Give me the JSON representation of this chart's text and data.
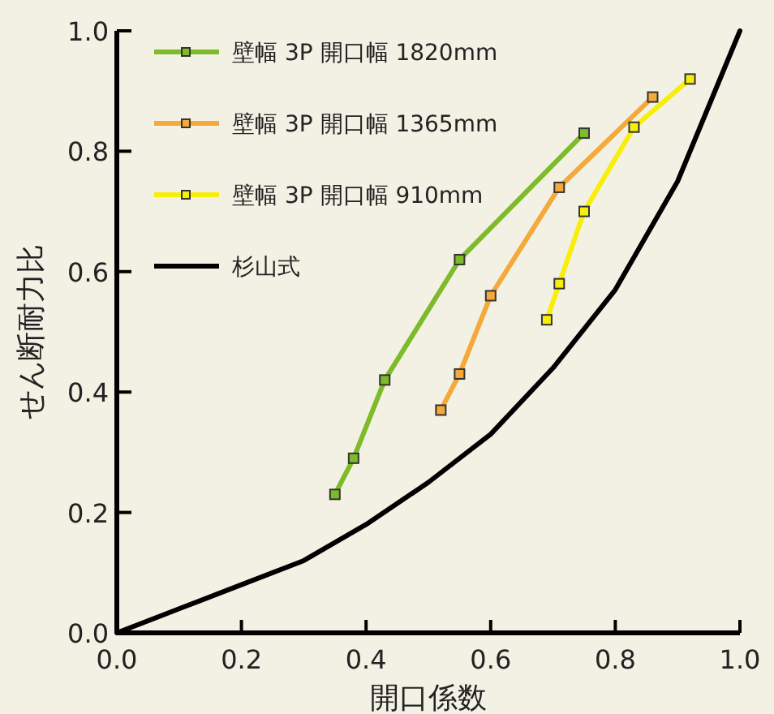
{
  "chart_data": {
    "type": "line",
    "xlabel": "開口係数",
    "ylabel": "せん断耐力比",
    "xlim": [
      0,
      1
    ],
    "ylim": [
      0,
      1
    ],
    "xticks": [
      {
        "value": 0,
        "label": "0.0"
      },
      0.2,
      0.4,
      0.6,
      0.8,
      {
        "value": 1,
        "label": "1.0"
      }
    ],
    "yticks": [
      {
        "value": 0,
        "label": "0.0"
      },
      0.2,
      0.4,
      0.6,
      0.8,
      {
        "value": 1,
        "label": "1.0"
      }
    ],
    "grid": false,
    "legend": "top left",
    "series": [
      {
        "name": "壁幅 3P 開口幅 1820mm",
        "color": "#7dbb2a",
        "marker": "square",
        "x": [
          0.35,
          0.38,
          0.43,
          0.55,
          0.75
        ],
        "values": [
          0.23,
          0.29,
          0.42,
          0.62,
          0.83
        ]
      },
      {
        "name": "壁幅 3P 開口幅 1365mm",
        "color": "#f4a93a",
        "marker": "square",
        "x": [
          0.52,
          0.55,
          0.6,
          0.71,
          0.86
        ],
        "values": [
          0.37,
          0.43,
          0.56,
          0.74,
          0.89
        ]
      },
      {
        "name": "壁幅 3P 開口幅 910mm",
        "color": "#f7ee0a",
        "marker": "square",
        "x": [
          0.69,
          0.71,
          0.75,
          0.83,
          0.92
        ],
        "values": [
          0.52,
          0.58,
          0.7,
          0.84,
          0.92
        ]
      },
      {
        "name": "杉山式",
        "color": "#000000",
        "marker": "none",
        "x": [
          0,
          0.1,
          0.2,
          0.3,
          0.4,
          0.5,
          0.6,
          0.7,
          0.8,
          0.9,
          1
        ],
        "values": [
          0,
          0.04,
          0.08,
          0.12,
          0.18,
          0.25,
          0.33,
          0.44,
          0.57,
          0.75,
          1
        ]
      }
    ]
  }
}
